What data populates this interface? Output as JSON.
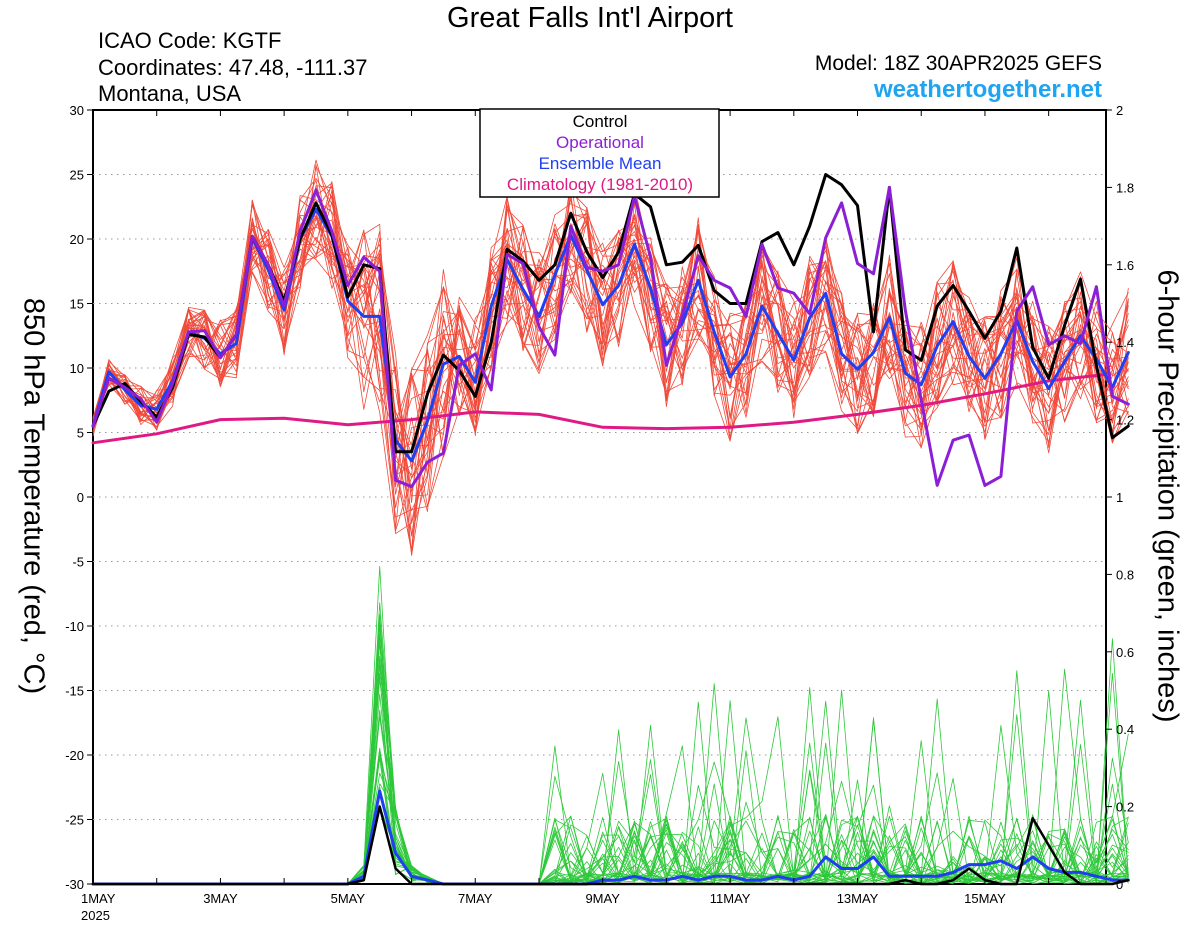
{
  "header": {
    "title": "Great Falls Int'l Airport",
    "icao": "ICAO Code: KGTF",
    "coordinates": "Coordinates: 47.48, -111.37",
    "region": "Montana, USA",
    "model": "Model: 18Z 30APR2025 GEFS",
    "site": "weathertogether.net"
  },
  "chart_data": {
    "type": "line",
    "ylabel_left": "850 hPa Temperature (red, °C)",
    "ylabel_right": "6-hour Precipitation (green, inches)",
    "ylim_left": [
      -30,
      30
    ],
    "ylim_right": [
      0,
      2
    ],
    "yticks_left": [
      30,
      25,
      20,
      15,
      10,
      5,
      0,
      -5,
      -10,
      -15,
      -20,
      -25,
      -30
    ],
    "yticks_right": [
      "2",
      "1.8",
      "1.6",
      "1.4",
      "1.2",
      "1",
      "0.8",
      "0.6",
      "0.4",
      "0.2",
      "0"
    ],
    "x_day_range": [
      1,
      16.9
    ],
    "x_step_days": 0.25,
    "xticks": [
      {
        "day": 1,
        "label": "1MAY",
        "sub": "2025"
      },
      {
        "day": 3,
        "label": "3MAY"
      },
      {
        "day": 5,
        "label": "5MAY"
      },
      {
        "day": 7,
        "label": "7MAY"
      },
      {
        "day": 9,
        "label": "9MAY"
      },
      {
        "day": 11,
        "label": "11MAY"
      },
      {
        "day": 13,
        "label": "13MAY"
      },
      {
        "day": 15,
        "label": "15MAY"
      }
    ],
    "grid": true,
    "legend": {
      "position": "top-center",
      "entries": [
        {
          "label": "Control",
          "color": "#000000"
        },
        {
          "label": "Operational",
          "color": "#8b1fd6"
        },
        {
          "label": "Ensemble Mean",
          "color": "#1f3ff0"
        },
        {
          "label": "Climatology (1981-2010)",
          "color": "#e01a84"
        }
      ]
    },
    "colors": {
      "members_temp": "#f04a3a",
      "members_precip": "#2ec83a",
      "control": "#000000",
      "operational": "#8b1fd6",
      "mean": "#1f3ff0",
      "climatology": "#e01a84"
    },
    "series": {
      "control_temp": [
        5.5,
        8.2,
        8.8,
        7.4,
        6.2,
        8.5,
        12.6,
        12.4,
        10.8,
        12.6,
        20.2,
        18,
        15.2,
        20,
        22.8,
        20.3,
        15.5,
        18,
        17.7,
        3.5,
        3.5,
        8,
        11,
        9.8,
        7.8,
        12,
        19.2,
        18.3,
        16.8,
        18,
        22,
        19,
        17,
        19,
        23.5,
        22.5,
        18,
        18.2,
        19.5,
        16,
        15,
        15,
        19.8,
        20.5,
        18,
        21,
        25,
        24.2,
        22.6,
        12.8,
        24,
        11.4,
        10.6,
        14.8,
        16.4,
        14.4,
        12.3,
        14.4,
        19.3,
        11.6,
        9.2,
        13.3,
        16.9,
        10.2,
        4.6,
        5.5
      ],
      "operational_temp": [
        5.5,
        9.2,
        8.5,
        7.6,
        5.8,
        8.8,
        12.8,
        12.9,
        10.8,
        12.6,
        20.2,
        18,
        14.8,
        20.6,
        23.8,
        20.6,
        16.4,
        18.6,
        17.5,
        1.3,
        0.8,
        2.7,
        3.4,
        10.2,
        11.1,
        8.3,
        18.8,
        18.1,
        13.2,
        11,
        21,
        17.8,
        17.5,
        18,
        23.3,
        18.6,
        10.2,
        14.1,
        18.7,
        16.8,
        16.2,
        14,
        19.6,
        16.2,
        15.8,
        14.2,
        20.1,
        22.8,
        18.1,
        17.3,
        24,
        14.5,
        7.5,
        0.9,
        4.4,
        4.8,
        0.9,
        1.6,
        14.4,
        16.3,
        11.8,
        12.5,
        11.9,
        16.3,
        7.8,
        7.2
      ],
      "mean_temp": [
        5.5,
        9.7,
        8.3,
        7.1,
        6.8,
        9,
        12.8,
        12.3,
        11.1,
        11.9,
        20.1,
        17.6,
        14.5,
        20,
        22.3,
        20.2,
        15.2,
        14,
        14,
        4.4,
        2.8,
        5.9,
        10.3,
        10.9,
        8.9,
        14.8,
        18.4,
        16.1,
        14,
        17.2,
        20.3,
        17.6,
        14.9,
        16.4,
        19.6,
        16.2,
        11.8,
        13.5,
        16.8,
        12.8,
        9.3,
        11.1,
        14.8,
        12.7,
        10.6,
        13.9,
        15.8,
        11.1,
        9.9,
        11.2,
        13.9,
        9.6,
        8.7,
        11.7,
        13.6,
        10.9,
        9.2,
        11.1,
        13.7,
        10.5,
        8.4,
        10.5,
        12.5,
        10.7,
        8.5,
        11.2
      ],
      "climatology_temp": [
        [
          1,
          4.2
        ],
        [
          2,
          4.9
        ],
        [
          3,
          6
        ],
        [
          4,
          6.1
        ],
        [
          5,
          5.6
        ],
        [
          6,
          6
        ],
        [
          7,
          6.6
        ],
        [
          8,
          6.4
        ],
        [
          9,
          5.4
        ],
        [
          10,
          5.3
        ],
        [
          11,
          5.4
        ],
        [
          12,
          5.8
        ],
        [
          13,
          6.4
        ],
        [
          14,
          7.1
        ],
        [
          15,
          8
        ],
        [
          16,
          9
        ],
        [
          16.9,
          9.5
        ]
      ],
      "control_precip": [
        0,
        0,
        0,
        0,
        0,
        0,
        0,
        0,
        0,
        0,
        0,
        0,
        0,
        0,
        0,
        0,
        0,
        0.01,
        0.2,
        0.04,
        0,
        0,
        0,
        0,
        0,
        0,
        0,
        0,
        0,
        0,
        0,
        0,
        0,
        0,
        0,
        0,
        0,
        0,
        0,
        0,
        0,
        0,
        0,
        0,
        0,
        0,
        0,
        0,
        0,
        0,
        0,
        0.01,
        0,
        0,
        0.01,
        0.04,
        0.01,
        0,
        0,
        0.17,
        0.1,
        0.03,
        0,
        0,
        0,
        0.01
      ],
      "mean_precip": [
        0,
        0,
        0,
        0,
        0,
        0,
        0,
        0,
        0,
        0,
        0,
        0,
        0,
        0,
        0,
        0,
        0,
        0.02,
        0.24,
        0.08,
        0.02,
        0.01,
        0,
        0,
        0,
        0,
        0,
        0,
        0,
        0,
        0,
        0,
        0.01,
        0.01,
        0.02,
        0.01,
        0.01,
        0.02,
        0.01,
        0.02,
        0.02,
        0.01,
        0.01,
        0.02,
        0.01,
        0.02,
        0.07,
        0.04,
        0.04,
        0.07,
        0.02,
        0.02,
        0.02,
        0.02,
        0.03,
        0.05,
        0.05,
        0.06,
        0.04,
        0.07,
        0.04,
        0.03,
        0.03,
        0.02,
        0.01,
        0.01
      ]
    }
  }
}
